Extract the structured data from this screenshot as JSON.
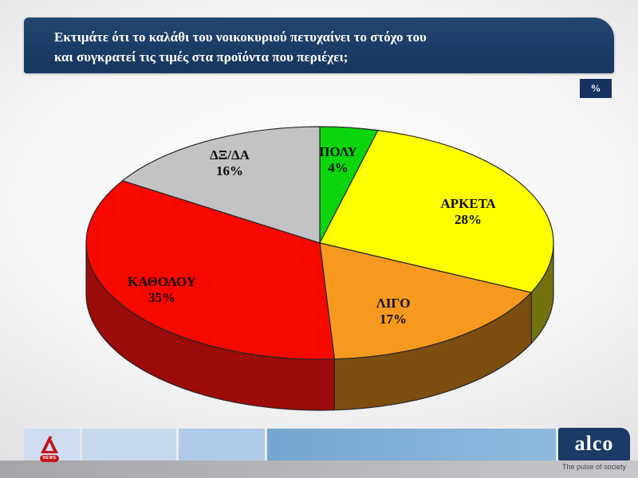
{
  "header": {
    "title_line1": "Εκτιμάτε ότι το καλάθι του νοικοκυριού πετυχαίνει το στόχο του",
    "title_line2": "και συγκρατεί τις τιμές στα προϊόντα που περιέχει;",
    "percent_badge": "%"
  },
  "chart_data": {
    "type": "pie",
    "style": "3d",
    "title": "Εκτιμάτε ότι το καλάθι του νοικοκυριού πετυχαίνει το στόχο του και συγκρατεί τις τιμές στα προϊόντα που περιέχει;",
    "units": "%",
    "start_angle_deg": 0,
    "direction": "clockwise",
    "legend": "none",
    "slices": [
      {
        "label": "ΠΟΛΥ",
        "value": 4,
        "value_label": "4%",
        "color": "#0bd60b"
      },
      {
        "label": "ΑΡΚΕΤΑ",
        "value": 28,
        "value_label": "28%",
        "color": "#fefe00",
        "side_color": "#73730d"
      },
      {
        "label": "ΛΙΓΟ",
        "value": 17,
        "value_label": "17%",
        "color": "#f7991e",
        "side_color": "#7c4e10"
      },
      {
        "label": "ΚΑΘΟΛΟΥ",
        "value": 35,
        "value_label": "35%",
        "color": "#f70800",
        "side_color": "#9c0a0a"
      },
      {
        "label": "ΔΞ/ΔΑ",
        "value": 16,
        "value_label": "16%",
        "color": "#c3c3c5"
      }
    ]
  },
  "footer": {
    "alpha_news": {
      "news_label": "NEWS"
    },
    "alco": {
      "name": "alco",
      "tagline": "The pulse of society"
    }
  },
  "colors": {
    "accent_navy": "#1b3c66",
    "alpha_red": "#c4161c"
  }
}
